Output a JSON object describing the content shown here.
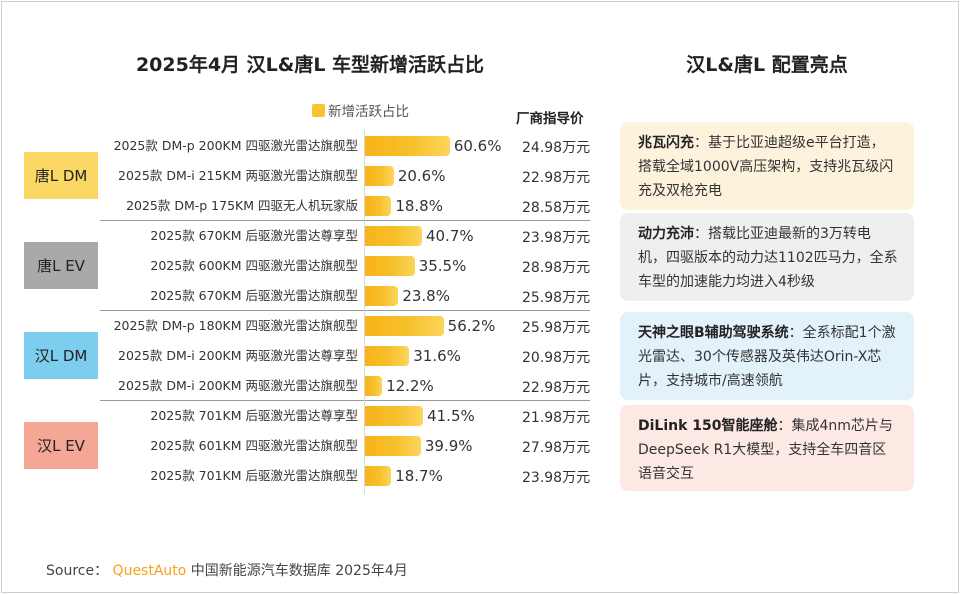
{
  "title": "2025年4月 汉L&唐L 车型新增活跃占比",
  "legend_label": "新增活跃占比",
  "price_header": "厂商指导价",
  "colors": {
    "bar": "#f7c531",
    "dm_tang": "#fbd766",
    "ev_tang": "#a9a9a9",
    "dm_han": "#7ccdee",
    "ev_han": "#f4a794"
  },
  "groups": [
    {
      "label": "唐L DM",
      "color": "#fbd766"
    },
    {
      "label": "唐L EV",
      "color": "#a9a9a9"
    },
    {
      "label": "汉L DM",
      "color": "#7ccdee"
    },
    {
      "label": "汉L EV",
      "color": "#f4a794"
    }
  ],
  "chart_data": {
    "type": "bar",
    "orientation": "horizontal",
    "title": "2025年4月 汉L&唐L 车型新增活跃占比",
    "series_name": "新增活跃占比",
    "categories": [
      "2025款 DM-p 200KM 四驱激光雷达旗舰型",
      "2025款 DM-i 215KM 两驱激光雷达旗舰型",
      "2025款 DM-p 175KM 四驱无人机玩家版",
      "2025款 670KM 后驱激光雷达尊享型",
      "2025款 600KM 四驱激光雷达旗舰型",
      "2025款 670KM 后驱激光雷达旗舰型",
      "2025款 DM-p 180KM 四驱激光雷达旗舰型",
      "2025款 DM-i 200KM 两驱激光雷达尊享型",
      "2025款 DM-i 200KM 两驱激光雷达旗舰型",
      "2025款 701KM 后驱激光雷达尊享型",
      "2025款 601KM 四驱激光雷达旗舰型",
      "2025款 701KM 后驱激光雷达旗舰型"
    ],
    "values": [
      60.6,
      20.6,
      18.8,
      40.7,
      35.5,
      23.8,
      56.2,
      31.6,
      12.2,
      41.5,
      39.9,
      18.7
    ],
    "value_labels": [
      "60.6%",
      "20.6%",
      "18.8%",
      "40.7%",
      "35.5%",
      "23.8%",
      "56.2%",
      "31.6%",
      "12.2%",
      "41.5%",
      "39.9%",
      "18.7%"
    ],
    "prices": [
      "24.98万元",
      "22.98万元",
      "28.58万元",
      "23.98万元",
      "28.98万元",
      "25.98万元",
      "25.98万元",
      "20.98万元",
      "22.98万元",
      "21.98万元",
      "27.98万元",
      "23.98万元"
    ],
    "group_of_row": [
      0,
      0,
      0,
      1,
      1,
      1,
      2,
      2,
      2,
      3,
      3,
      3
    ],
    "xlim": [
      0,
      100
    ]
  },
  "highlights": {
    "title": "汉L&唐L 配置亮点",
    "cards": [
      {
        "heading": "兆瓦闪充",
        "sep": "：",
        "body": "基于比亚迪超级e平台打造，搭载全域1000V高压架构，支持兆瓦级闪充及双枪充电",
        "bg": "#fdf3dc"
      },
      {
        "heading": "动力充沛",
        "sep": "：",
        "body": "搭载比亚迪最新的3万转电机，四驱版本的动力达1102匹马力，全系车型的加速能力均进入4秒级",
        "bg": "#efefef"
      },
      {
        "heading": "天神之眼B辅助驾驶系统",
        "sep": "：",
        "body": "全系标配1个激光雷达、30个传感器及英伟达Orin-X芯片，支持城市/高速领航",
        "bg": "#e3f2fa"
      },
      {
        "heading": "DiLink 150智能座舱",
        "sep": "：",
        "body": "集成4nm芯片与DeepSeek R1大模型，支持全车四音区语音交互",
        "bg": "#fde9e4"
      }
    ]
  },
  "source": {
    "prefix": "Source：",
    "brand": "QuestAuto",
    "text": "中国新能源汽车数据库 2025年4月"
  }
}
